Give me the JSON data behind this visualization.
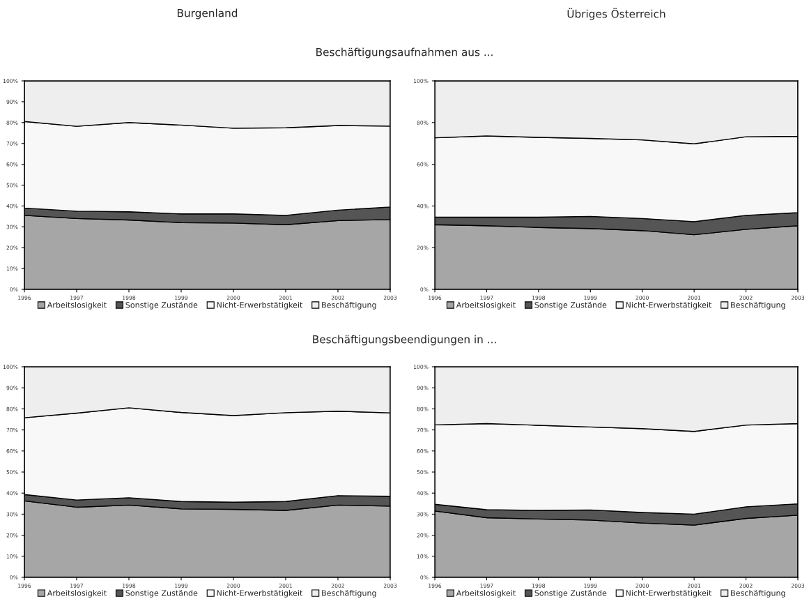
{
  "chart_data": [
    {
      "type": "area",
      "stacked": true,
      "title": "Burgenland",
      "subtitle": "Beschäftigungsaufnahmen aus ...",
      "x": [
        1996,
        1997,
        1998,
        1999,
        2000,
        2001,
        2002,
        2003
      ],
      "xlim": [
        1996,
        2003
      ],
      "xticks": [
        1996,
        1997,
        1998,
        1999,
        2000,
        2001,
        2002,
        2003
      ],
      "ylim": [
        0,
        100
      ],
      "yticks": [
        {
          "value": 0,
          "label": "0%"
        },
        {
          "value": 10,
          "label": "10%"
        },
        {
          "value": 20,
          "label": "20%"
        },
        {
          "value": 30,
          "label": "30%"
        },
        {
          "value": 40,
          "label": "40%"
        },
        {
          "value": 50,
          "label": "50%"
        },
        {
          "value": 60,
          "label": "60%"
        },
        {
          "value": 70,
          "label": "70%"
        },
        {
          "value": 80,
          "label": "80%"
        },
        {
          "value": 90,
          "label": "90%"
        },
        {
          "value": 100,
          "label": "100%"
        }
      ],
      "legend": "bottom",
      "series": [
        {
          "name": "Arbeitslosigkeit",
          "color": "#a6a6a6",
          "values": [
            35.5,
            34,
            33.3,
            32,
            31.8,
            31,
            33,
            33.5
          ]
        },
        {
          "name": "Sonstige Zustände",
          "color": "#555555",
          "values": [
            3.5,
            3.5,
            3.9,
            4.2,
            4.4,
            4.5,
            5,
            6
          ]
        },
        {
          "name": "Nicht-Erwerbstätigkeit",
          "color": "#f8f8f8",
          "values": [
            41.5,
            40.7,
            42.8,
            42.6,
            41.1,
            42,
            40.6,
            38.8
          ]
        },
        {
          "name": "Beschäftigung",
          "color": "#eeeeee",
          "values": [
            19.5,
            21.8,
            20,
            21.2,
            22.7,
            22.5,
            21.4,
            21.7
          ]
        }
      ]
    },
    {
      "type": "area",
      "stacked": true,
      "title": "Übriges Österreich",
      "x": [
        1996,
        1997,
        1998,
        1999,
        2000,
        2001,
        2002,
        2003
      ],
      "xlim": [
        1996,
        2003
      ],
      "xticks": [
        1996,
        1997,
        1998,
        1999,
        2000,
        2001,
        2002,
        2003
      ],
      "ylim": [
        0,
        100
      ],
      "yticks": [
        {
          "value": 0,
          "label": "0%"
        },
        {
          "value": 20,
          "label": "20%"
        },
        {
          "value": 40,
          "label": "40%"
        },
        {
          "value": 60,
          "label": "60%"
        },
        {
          "value": 80,
          "label": "80%"
        },
        {
          "value": 100,
          "label": "100%"
        }
      ],
      "legend": "bottom",
      "series": [
        {
          "name": "Arbeitslosigkeit",
          "color": "#a6a6a6",
          "values": [
            31,
            30.5,
            29.7,
            29.2,
            28.2,
            26.2,
            28.8,
            30.5
          ]
        },
        {
          "name": "Sonstige Zustände",
          "color": "#555555",
          "values": [
            3.7,
            4.1,
            4.9,
            5.8,
            5.8,
            6.3,
            6.7,
            6.3
          ]
        },
        {
          "name": "Nicht-Erwerbstätigkeit",
          "color": "#f8f8f8",
          "values": [
            38,
            39,
            38.3,
            37.4,
            37.7,
            37.3,
            37.7,
            36.6
          ]
        },
        {
          "name": "Beschäftigung",
          "color": "#eeeeee",
          "values": [
            27.3,
            26.4,
            27.1,
            27.6,
            28.3,
            30.2,
            26.8,
            26.6
          ]
        }
      ]
    },
    {
      "type": "area",
      "stacked": true,
      "subtitle": "Beschäftigungsbeendigungen in ...",
      "x": [
        1996,
        1997,
        1998,
        1999,
        2000,
        2001,
        2002,
        2003
      ],
      "xlim": [
        1996,
        2003
      ],
      "xticks": [
        1996,
        1997,
        1998,
        1999,
        2000,
        2001,
        2002,
        2003
      ],
      "ylim": [
        0,
        100
      ],
      "yticks": [
        {
          "value": 0,
          "label": "0%"
        },
        {
          "value": 10,
          "label": "10%"
        },
        {
          "value": 20,
          "label": "20%"
        },
        {
          "value": 30,
          "label": "30%"
        },
        {
          "value": 40,
          "label": "40%"
        },
        {
          "value": 50,
          "label": "50%"
        },
        {
          "value": 60,
          "label": "60%"
        },
        {
          "value": 70,
          "label": "70%"
        },
        {
          "value": 80,
          "label": "80%"
        },
        {
          "value": 90,
          "label": "90%"
        },
        {
          "value": 100,
          "label": "100%"
        }
      ],
      "legend": "bottom",
      "series": [
        {
          "name": "Arbeitslosigkeit",
          "color": "#a6a6a6",
          "values": [
            36.3,
            33.3,
            34.3,
            32.5,
            32.3,
            31.8,
            34.3,
            33.8
          ]
        },
        {
          "name": "Sonstige Zustände",
          "color": "#555555",
          "values": [
            3,
            3.4,
            3.5,
            3.5,
            3.4,
            4.2,
            4.5,
            4.7
          ]
        },
        {
          "name": "Nicht-Erwerbstätigkeit",
          "color": "#f8f8f8",
          "values": [
            36.5,
            41.3,
            42.7,
            42.3,
            41.1,
            42.2,
            40.1,
            39.6
          ]
        },
        {
          "name": "Beschäftigung",
          "color": "#eeeeee",
          "values": [
            24.2,
            22,
            19.5,
            21.7,
            23.2,
            21.8,
            21.1,
            21.9
          ]
        }
      ]
    },
    {
      "type": "area",
      "stacked": true,
      "x": [
        1996,
        1997,
        1998,
        1999,
        2000,
        2001,
        2002,
        2003
      ],
      "xlim": [
        1996,
        2003
      ],
      "xticks": [
        1996,
        1997,
        1998,
        1999,
        2000,
        2001,
        2002,
        2003
      ],
      "ylim": [
        0,
        100
      ],
      "yticks": [
        {
          "value": 0,
          "label": "0%"
        },
        {
          "value": 10,
          "label": "10%"
        },
        {
          "value": 20,
          "label": "20%"
        },
        {
          "value": 30,
          "label": "30%"
        },
        {
          "value": 40,
          "label": "40%"
        },
        {
          "value": 50,
          "label": "50%"
        },
        {
          "value": 60,
          "label": "60%"
        },
        {
          "value": 70,
          "label": "70%"
        },
        {
          "value": 80,
          "label": "80%"
        },
        {
          "value": 90,
          "label": "90%"
        },
        {
          "value": 100,
          "label": "100%"
        }
      ],
      "legend": "bottom",
      "series": [
        {
          "name": "Arbeitslosigkeit",
          "color": "#a6a6a6",
          "values": [
            31.5,
            28.3,
            27.7,
            27.2,
            25.8,
            24.8,
            28,
            29.5
          ]
        },
        {
          "name": "Sonstige Zustände",
          "color": "#555555",
          "values": [
            3.2,
            3.8,
            4.1,
            4.8,
            5,
            5.2,
            5.5,
            5.4
          ]
        },
        {
          "name": "Nicht-Erwerbstätigkeit",
          "color": "#f8f8f8",
          "values": [
            37.7,
            40.9,
            40.4,
            39.4,
            39.8,
            39.3,
            38.8,
            38.1
          ]
        },
        {
          "name": "Beschäftigung",
          "color": "#eeeeee",
          "values": [
            27.6,
            27,
            27.8,
            28.6,
            29.4,
            30.7,
            27.7,
            27
          ]
        }
      ]
    }
  ]
}
